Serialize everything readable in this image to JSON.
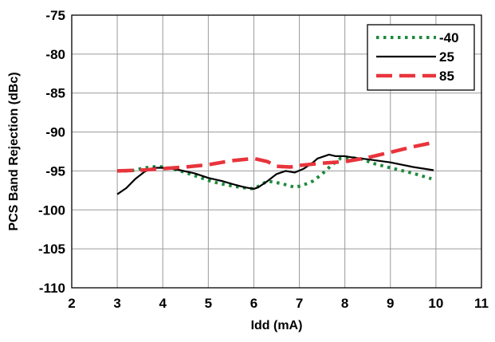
{
  "chart_data": {
    "type": "line",
    "title": "",
    "xlabel": "Idd (mA)",
    "ylabel": "PCS Band Rejection (dBc)",
    "xlim": [
      2,
      11
    ],
    "ylim": [
      -110,
      -75
    ],
    "xticks": [
      2,
      3,
      4,
      5,
      6,
      7,
      8,
      9,
      10,
      11
    ],
    "yticks": [
      -75,
      -80,
      -85,
      -90,
      -95,
      -100,
      -105,
      -110
    ],
    "xtick_labels": [
      "2",
      "3",
      "4",
      "5",
      "6",
      "7",
      "8",
      "9",
      "10",
      "11"
    ],
    "ytick_labels": [
      "-75",
      "-80",
      "-85",
      "-90",
      "-95",
      "-100",
      "-105",
      "-110"
    ],
    "grid": true,
    "legend_position": "top-right",
    "series": [
      {
        "name": "-40",
        "color": "#1e8a3c",
        "dash": "dotted",
        "points": [
          [
            3.0,
            -95.0
          ],
          [
            3.3,
            -95.0
          ],
          [
            3.6,
            -94.6
          ],
          [
            3.9,
            -94.4
          ],
          [
            4.2,
            -94.7
          ],
          [
            4.5,
            -95.2
          ],
          [
            4.8,
            -95.8
          ],
          [
            5.1,
            -96.4
          ],
          [
            5.4,
            -96.8
          ],
          [
            5.7,
            -97.1
          ],
          [
            6.0,
            -97.3
          ],
          [
            6.3,
            -96.3
          ],
          [
            6.6,
            -96.6
          ],
          [
            6.9,
            -97.1
          ],
          [
            7.05,
            -96.9
          ],
          [
            7.3,
            -96.3
          ],
          [
            7.5,
            -95.4
          ],
          [
            7.7,
            -94.3
          ],
          [
            7.9,
            -93.4
          ],
          [
            8.15,
            -93.3
          ],
          [
            8.4,
            -93.5
          ],
          [
            8.6,
            -94.0
          ],
          [
            9.0,
            -94.6
          ],
          [
            9.5,
            -95.3
          ],
          [
            9.9,
            -96.0
          ]
        ]
      },
      {
        "name": "25",
        "color": "#000000",
        "dash": "solid",
        "points": [
          [
            3.0,
            -98.0
          ],
          [
            3.2,
            -97.2
          ],
          [
            3.4,
            -96.0
          ],
          [
            3.6,
            -95.1
          ],
          [
            3.8,
            -94.6
          ],
          [
            4.0,
            -94.6
          ],
          [
            4.3,
            -94.8
          ],
          [
            4.7,
            -95.3
          ],
          [
            5.0,
            -95.9
          ],
          [
            5.3,
            -96.3
          ],
          [
            5.6,
            -96.8
          ],
          [
            5.8,
            -97.1
          ],
          [
            6.0,
            -97.3
          ],
          [
            6.1,
            -97.1
          ],
          [
            6.3,
            -96.3
          ],
          [
            6.5,
            -95.4
          ],
          [
            6.7,
            -95.0
          ],
          [
            6.9,
            -95.2
          ],
          [
            7.1,
            -94.7
          ],
          [
            7.3,
            -93.9
          ],
          [
            7.4,
            -93.4
          ],
          [
            7.55,
            -93.1
          ],
          [
            7.65,
            -92.9
          ],
          [
            7.8,
            -93.1
          ],
          [
            8.0,
            -93.1
          ],
          [
            8.2,
            -93.3
          ],
          [
            8.5,
            -93.5
          ],
          [
            9.0,
            -93.9
          ],
          [
            9.5,
            -94.5
          ],
          [
            9.95,
            -94.9
          ]
        ]
      },
      {
        "name": "85",
        "color": "#e8343c",
        "dash": "dashed",
        "points": [
          [
            3.0,
            -95.0
          ],
          [
            3.5,
            -94.9
          ],
          [
            4.0,
            -94.7
          ],
          [
            4.5,
            -94.5
          ],
          [
            5.0,
            -94.2
          ],
          [
            5.5,
            -93.7
          ],
          [
            6.0,
            -93.4
          ],
          [
            6.3,
            -93.8
          ],
          [
            6.5,
            -94.4
          ],
          [
            6.8,
            -94.5
          ],
          [
            7.0,
            -94.3
          ],
          [
            7.5,
            -94.0
          ],
          [
            8.0,
            -93.8
          ],
          [
            8.5,
            -93.3
          ],
          [
            9.0,
            -92.6
          ],
          [
            9.5,
            -91.9
          ],
          [
            9.9,
            -91.4
          ]
        ]
      }
    ]
  }
}
